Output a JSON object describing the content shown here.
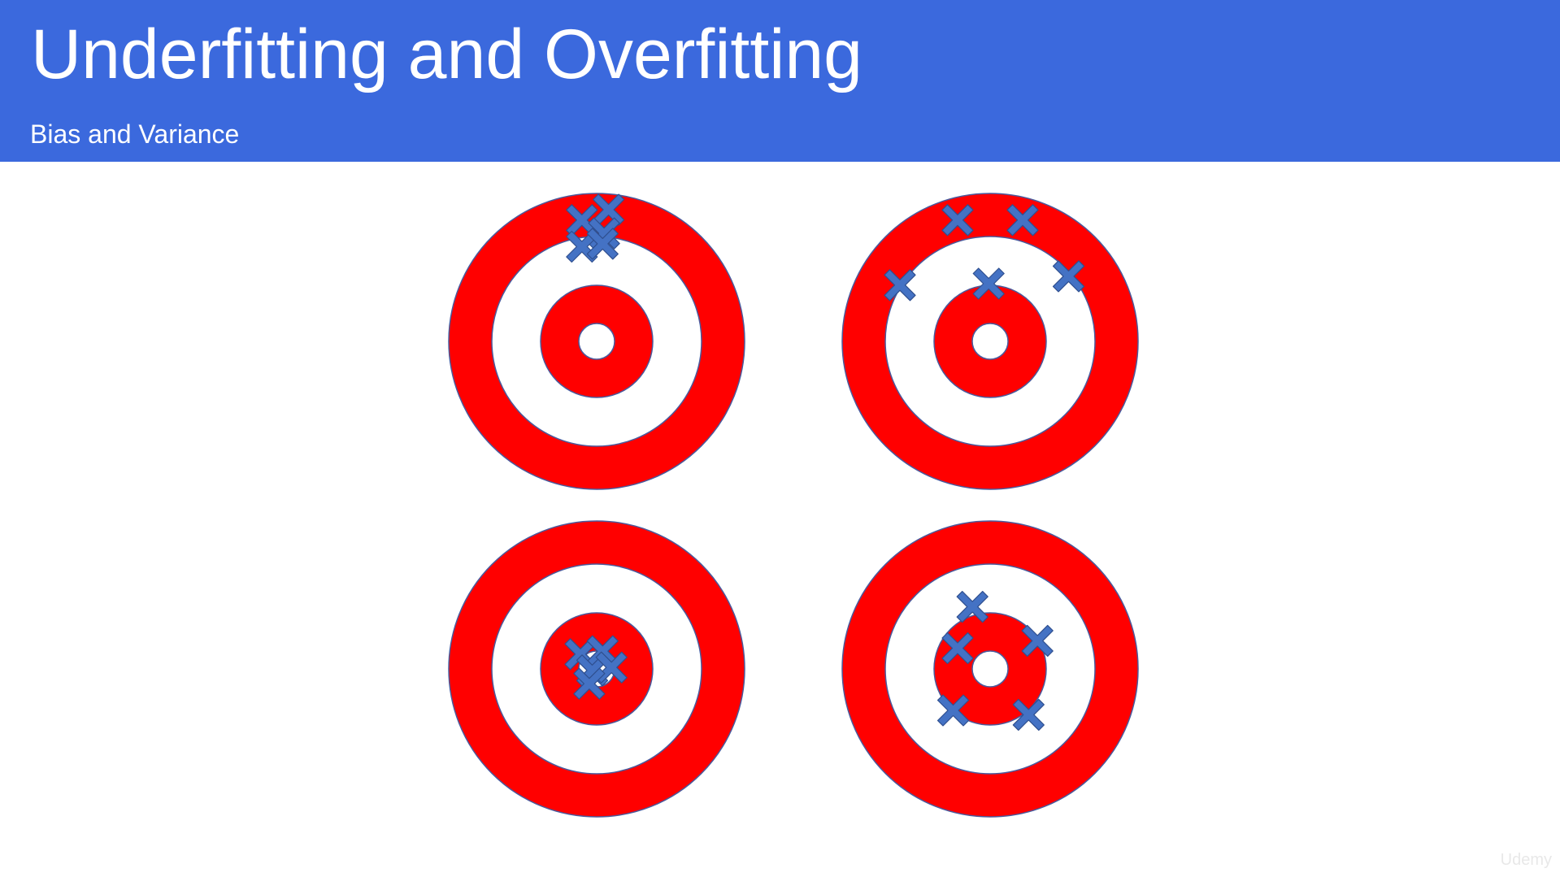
{
  "slide": {
    "title": "Underfitting and Overfitting",
    "subtitle": "Bias and Variance",
    "watermark": "Udemy"
  },
  "colors": {
    "header_background": "#3b69dd",
    "header_text": "#ffffff",
    "target_red": "#ff0000",
    "target_white": "#ffffff",
    "target_outline": "#4a5a9c",
    "marker_fill": "#4472c4",
    "marker_outline": "#2f4f8f"
  },
  "icons": {
    "target": "bullseye-target",
    "marker": "x-cross-marker"
  },
  "targets": [
    {
      "name": "target-top-left",
      "markers": [
        {
          "dx": -0.1,
          "dy": -0.82
        },
        {
          "dx": 0.08,
          "dy": -0.89
        },
        {
          "dx": 0.05,
          "dy": -0.73
        },
        {
          "dx": -0.1,
          "dy": -0.64
        },
        {
          "dx": 0.04,
          "dy": -0.66
        }
      ]
    },
    {
      "name": "target-top-right",
      "markers": [
        {
          "dx": -0.22,
          "dy": -0.82
        },
        {
          "dx": 0.22,
          "dy": -0.82
        },
        {
          "dx": -0.61,
          "dy": -0.38
        },
        {
          "dx": -0.01,
          "dy": -0.39
        },
        {
          "dx": 0.53,
          "dy": -0.44
        }
      ]
    },
    {
      "name": "target-bottom-left",
      "markers": [
        {
          "dx": -0.11,
          "dy": -0.1
        },
        {
          "dx": 0.04,
          "dy": -0.12
        },
        {
          "dx": -0.03,
          "dy": 0.01
        },
        {
          "dx": 0.1,
          "dy": -0.01
        },
        {
          "dx": -0.05,
          "dy": 0.1
        }
      ]
    },
    {
      "name": "target-bottom-right",
      "markers": [
        {
          "dx": -0.12,
          "dy": -0.42
        },
        {
          "dx": -0.22,
          "dy": -0.14
        },
        {
          "dx": 0.32,
          "dy": -0.19
        },
        {
          "dx": -0.25,
          "dy": 0.28
        },
        {
          "dx": 0.26,
          "dy": 0.31
        }
      ]
    }
  ]
}
